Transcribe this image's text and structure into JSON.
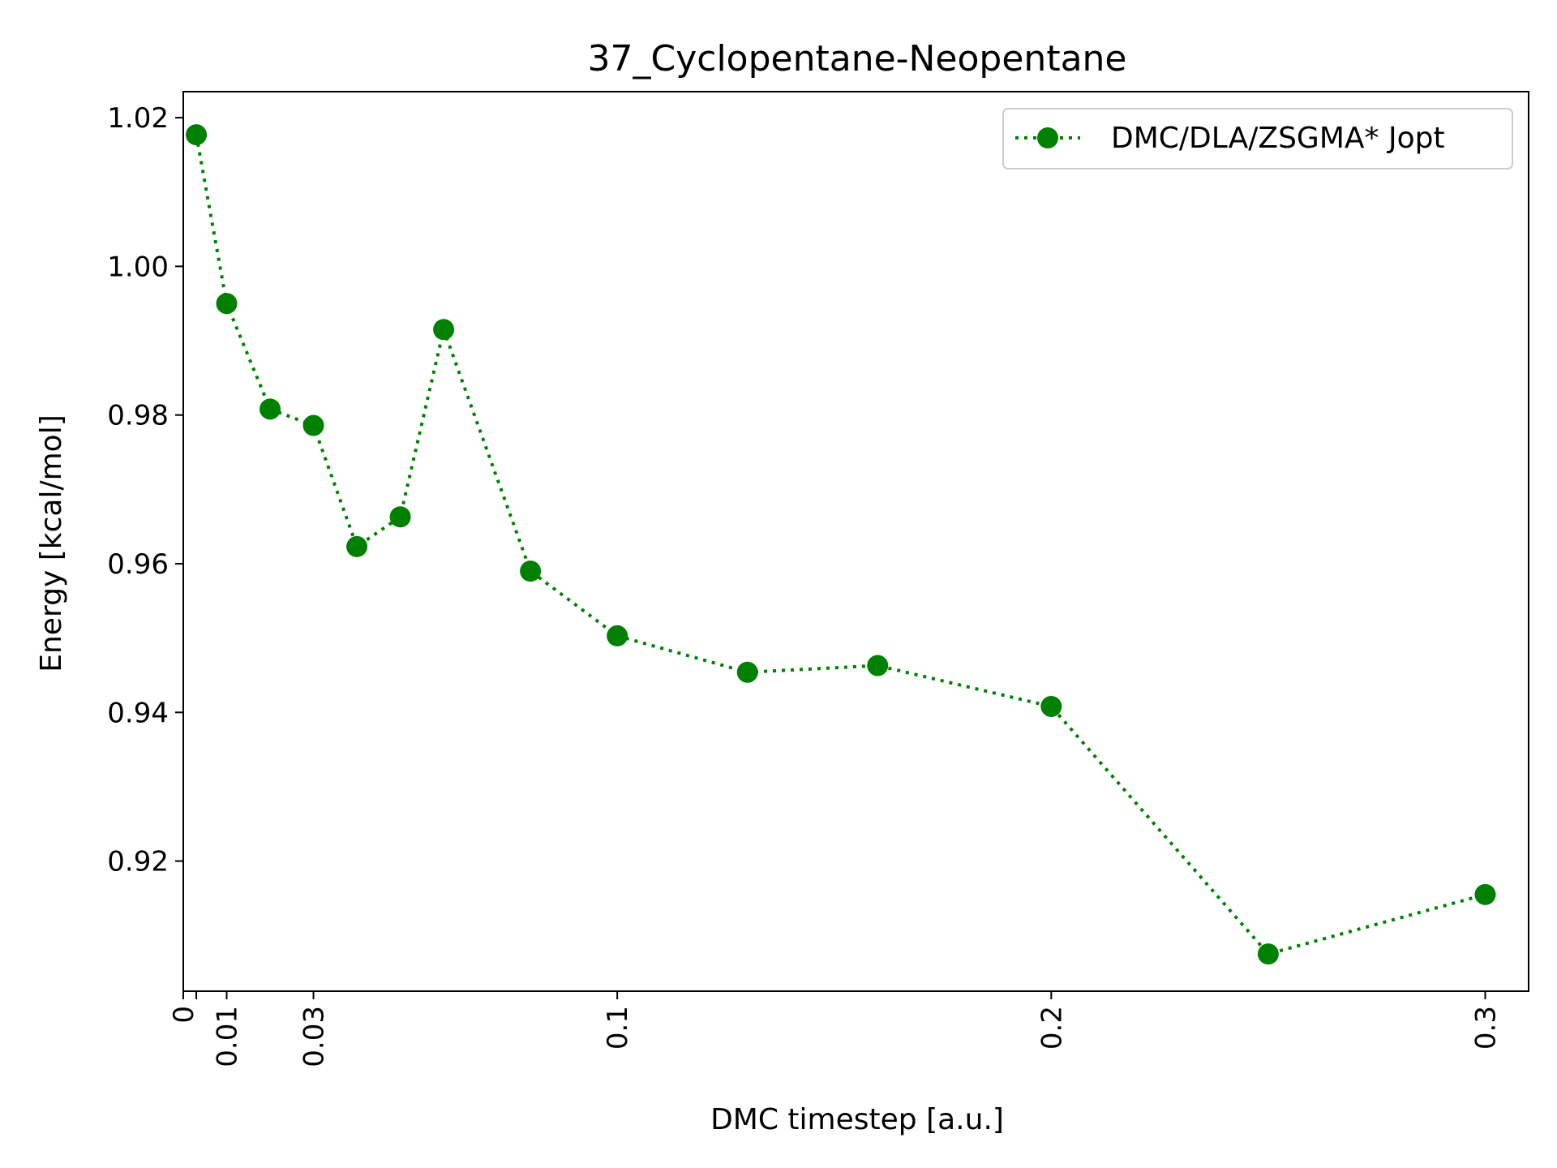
{
  "chart_data": {
    "type": "line",
    "title": "37_Cyclopentane-Neopentane",
    "xlabel": "DMC timestep [a.u.]",
    "ylabel": "Energy [kcal/mol]",
    "xlim": [
      0,
      0.31
    ],
    "ylim": [
      0.9025,
      1.0235
    ],
    "xticks": [
      0,
      0.003,
      0.01,
      0.03,
      0.1,
      0.2,
      0.3
    ],
    "xtick_labels": [
      "0",
      "",
      "0.01",
      "0.03",
      "0.1",
      "0.2",
      "0.3"
    ],
    "yticks": [
      0.92,
      0.94,
      0.96,
      0.98,
      1.0,
      1.02
    ],
    "ytick_labels": [
      "0.92",
      "0.94",
      "0.96",
      "0.98",
      "1.00",
      "1.02"
    ],
    "grid": false,
    "legend_position": "top-right",
    "series": [
      {
        "name": "DMC/DLA/ZSGMA* Jopt",
        "color": "#008000",
        "linestyle": "dotted",
        "marker": "circle",
        "x": [
          0.003,
          0.01,
          0.02,
          0.03,
          0.04,
          0.05,
          0.06,
          0.08,
          0.1,
          0.13,
          0.16,
          0.2,
          0.25,
          0.3
        ],
        "y": [
          1.0177,
          0.995,
          0.9808,
          0.9786,
          0.9623,
          0.9663,
          0.9915,
          0.959,
          0.9503,
          0.9454,
          0.9463,
          0.9408,
          0.9075,
          0.9155
        ]
      }
    ]
  }
}
